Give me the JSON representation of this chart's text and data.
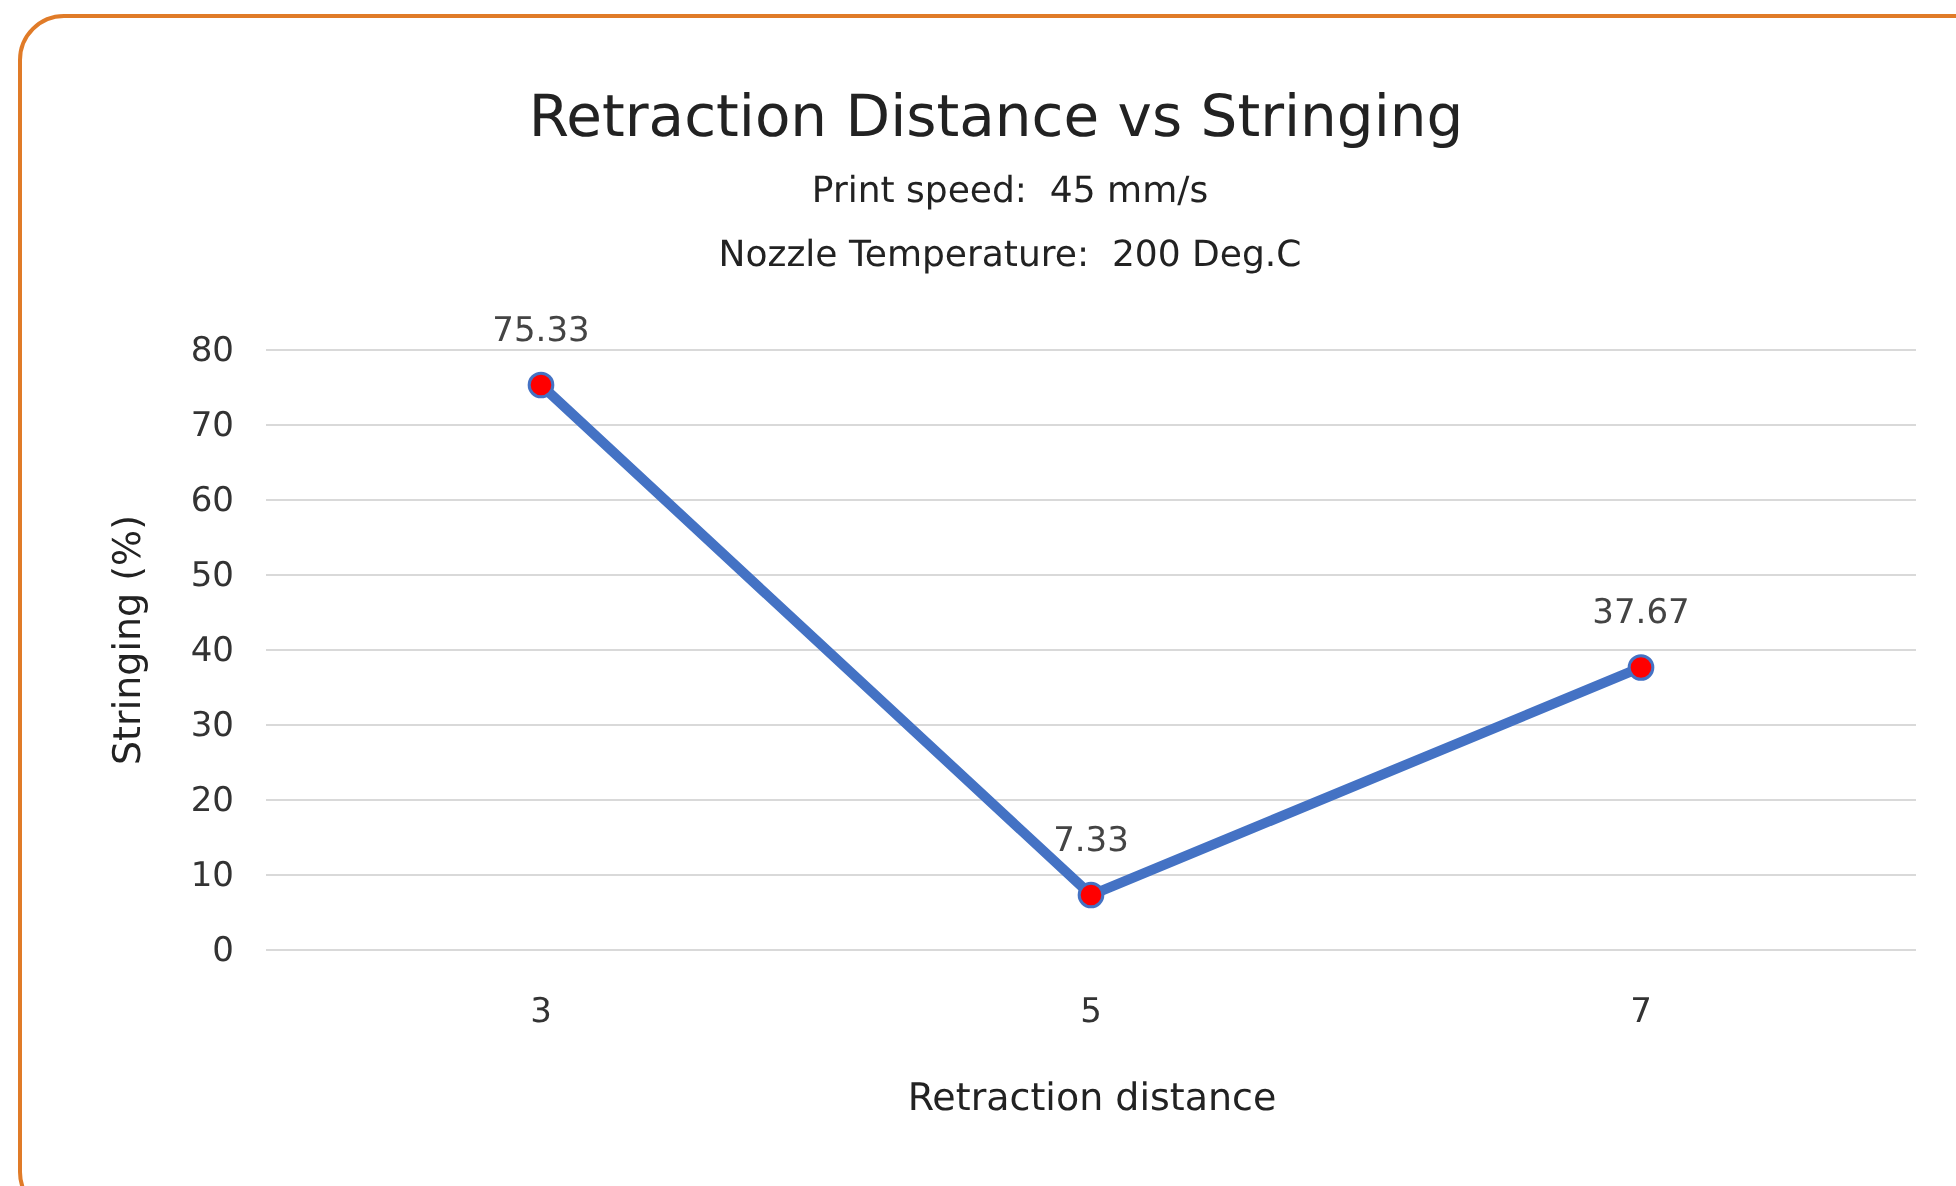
{
  "chart_data": {
    "type": "line",
    "title": "Retraction Distance vs Stringing",
    "subtitle": "Print speed:  45 mm/s\nNozzle Temperature:  200 Deg.C",
    "xlabel": "Retraction distance",
    "ylabel": "Stringing (%)",
    "categories": [
      "3",
      "5",
      "7"
    ],
    "series": [
      {
        "color": "#4472c4",
        "colors": [
          "#ff0000",
          "#ff0000",
          "#ff0000"
        ],
        "values": [
          75.33,
          7.33,
          37.67
        ]
      }
    ],
    "ylim": [
      0,
      80
    ],
    "yticks": [
      0,
      10,
      20,
      30,
      40,
      50,
      60,
      70,
      80
    ],
    "grid": "y",
    "marker": "circle",
    "line_style": "solid",
    "data_labels": true
  }
}
